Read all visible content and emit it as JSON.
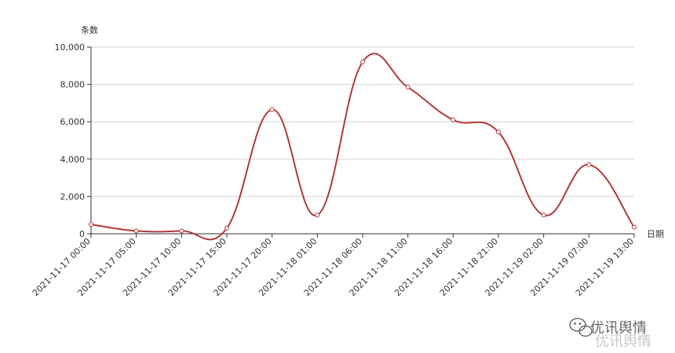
{
  "chart_data": {
    "type": "line",
    "ylabel": "条数",
    "xlabel": "日期",
    "ylim": [
      0,
      10000
    ],
    "yticks": [
      "0",
      "2,000",
      "4,000",
      "6,000",
      "8,000",
      "10,000"
    ],
    "categories": [
      "2021-11-17 00:00",
      "2021-11-17 05:00",
      "2021-11-17 10:00",
      "2021-11-17 15:00",
      "2021-11-17 20:00",
      "2021-11-18 01:00",
      "2021-11-18 06:00",
      "2021-11-18 11:00",
      "2021-11-18 16:00",
      "2021-11-18 21:00",
      "2021-11-19 02:00",
      "2021-11-19 07:00",
      "2021-11-19 13:00"
    ],
    "series": [
      {
        "values": [
          500,
          150,
          150,
          300,
          6650,
          1000,
          9200,
          7850,
          6100,
          5450,
          1000,
          3700,
          350
        ]
      }
    ],
    "grid": "horizontal",
    "line_color": "#b03a3a"
  },
  "watermark": {
    "text": "优讯舆情",
    "icon": "wechat-icon"
  }
}
